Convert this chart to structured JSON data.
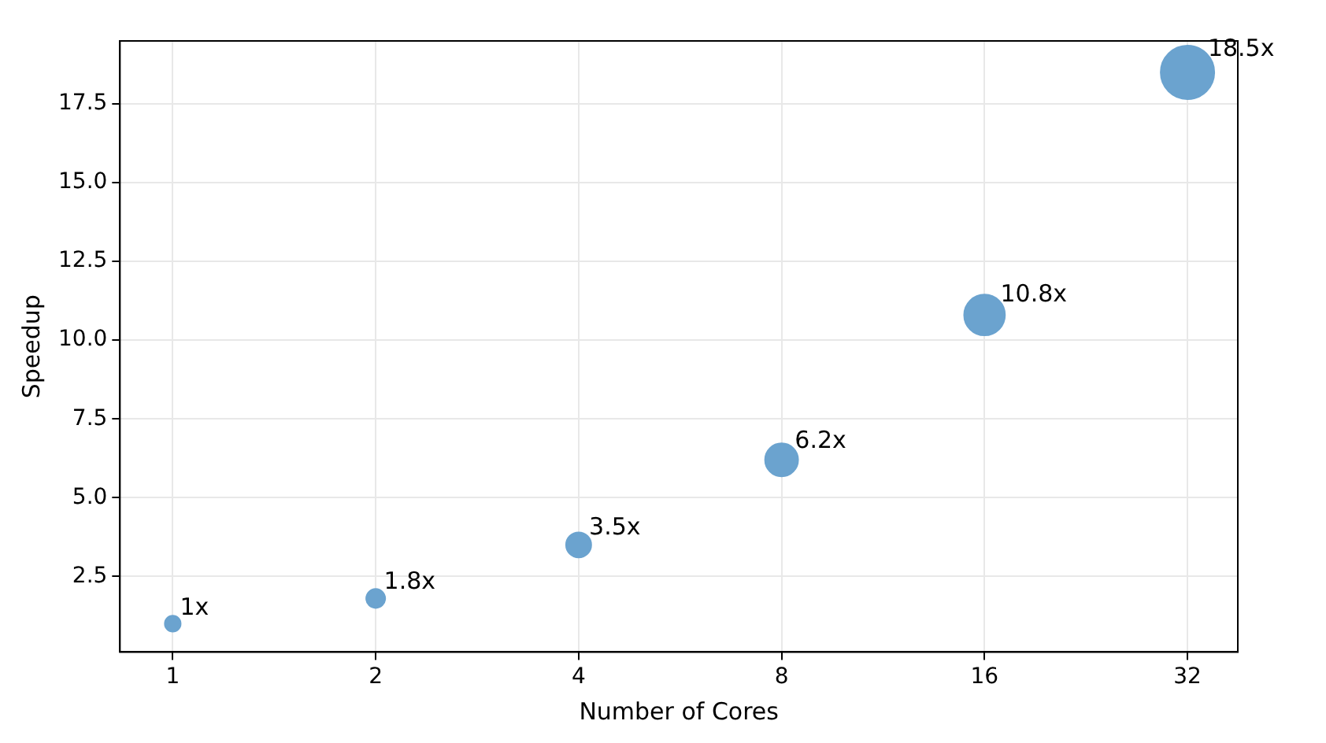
{
  "chart_data": {
    "type": "bubble",
    "xlabel": "Number of Cores",
    "ylabel": "Speedup",
    "x": [
      1,
      2,
      4,
      8,
      16,
      32
    ],
    "series": [
      {
        "color": "#6ba3cf",
        "values": [
          1,
          1.8,
          3.5,
          6.2,
          10.8,
          18.5
        ],
        "sizes": [
          0.087,
          0.125,
          0.22,
          0.38,
          0.58,
          1
        ],
        "value_labels": [
          "1x",
          "1.8x",
          "3.5x",
          "6.2x",
          "10.8x",
          "18.5x"
        ]
      }
    ],
    "log": "x",
    "xlim": [
      0.835,
      38
    ],
    "xticks": [
      1,
      2,
      4,
      8,
      16,
      32
    ],
    "ylim": [
      0.1,
      19.5
    ],
    "yticks": [
      2.5,
      {
        "value": 5,
        "label": "5.0"
      },
      7.5,
      {
        "value": 10,
        "label": "10.0"
      },
      12.5,
      {
        "value": 15,
        "label": "15.0"
      },
      17.5
    ],
    "grid": true,
    "legend": false
  }
}
